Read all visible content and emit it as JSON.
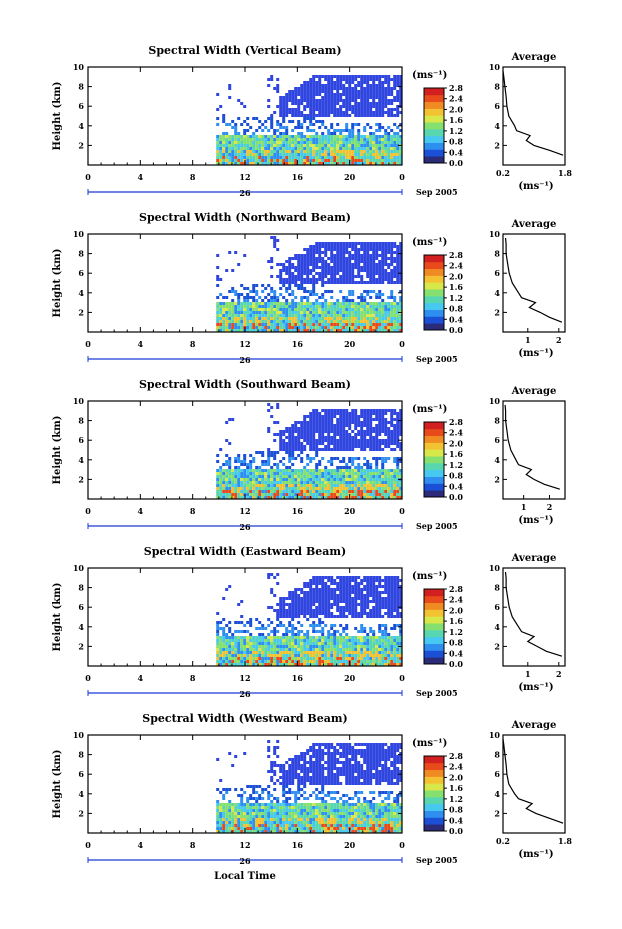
{
  "figure": {
    "x_axis_label": "Local Time",
    "date_label": "Sep 2005",
    "day_label": "26",
    "time_ticks": [
      "0",
      "4",
      "8",
      "12",
      "16",
      "20",
      "0"
    ],
    "height_axis_label": "Height (km)",
    "height_ticks": [
      "2",
      "4",
      "6",
      "8",
      "10"
    ],
    "colorbar_unit": "(ms⁻¹)",
    "colorbar_ticks": [
      "0.0",
      "0.4",
      "0.8",
      "1.2",
      "1.6",
      "2.0",
      "2.4",
      "2.8"
    ],
    "average_title": "Average",
    "average_xlabel": "(ms⁻¹)",
    "colors": {
      "scale": [
        "#2b2b7a",
        "#1a4fd6",
        "#2f8ff0",
        "#46c8f0",
        "#58d6b0",
        "#86e070",
        "#d8e84a",
        "#f2c232",
        "#f08a22",
        "#e84a1c",
        "#d22020"
      ],
      "blue_cloud": "#2f45e0"
    }
  },
  "chart_data": [
    {
      "type": "heatmap",
      "title": "Spectral Width (Vertical Beam)",
      "colorbar_range": [
        0.0,
        2.8
      ],
      "xlim_hours": [
        0,
        24
      ],
      "ylim_km": [
        0,
        10
      ],
      "data_start_hour": 9.8,
      "average_profile": {
        "xticks": [
          "0.2",
          "1.8"
        ],
        "xlim": [
          0.2,
          1.8
        ],
        "height_km": [
          1,
          1.5,
          2,
          2.5,
          3,
          3.5,
          4,
          5,
          6,
          7,
          8,
          9,
          9.6
        ],
        "value": [
          1.75,
          1.4,
          1.0,
          0.8,
          0.9,
          0.55,
          0.5,
          0.35,
          0.3,
          0.28,
          0.25,
          0.22,
          0.2
        ]
      }
    },
    {
      "type": "heatmap",
      "title": "Spectral Width (Northward Beam)",
      "colorbar_range": [
        0.0,
        2.8
      ],
      "xlim_hours": [
        0,
        24
      ],
      "ylim_km": [
        0,
        10
      ],
      "data_start_hour": 9.8,
      "average_profile": {
        "xticks": [
          "1",
          "2"
        ],
        "xlim": [
          0.2,
          2.2
        ],
        "height_km": [
          1,
          1.5,
          2,
          2.5,
          3,
          3.5,
          4,
          5,
          6,
          7,
          8,
          9,
          9.6
        ],
        "value": [
          2.1,
          1.7,
          1.4,
          1.05,
          1.25,
          0.8,
          0.7,
          0.5,
          0.4,
          0.35,
          0.3,
          0.3,
          0.28
        ]
      }
    },
    {
      "type": "heatmap",
      "title": "Spectral Width (Southward Beam)",
      "colorbar_range": [
        0.0,
        2.8
      ],
      "xlim_hours": [
        0,
        24
      ],
      "ylim_km": [
        0,
        10
      ],
      "data_start_hour": 9.8,
      "average_profile": {
        "xticks": [
          "1",
          "2"
        ],
        "xlim": [
          0.2,
          2.6
        ],
        "height_km": [
          1,
          1.5,
          2,
          2.5,
          3,
          3.5,
          4,
          5,
          6,
          7,
          8,
          9,
          9.6
        ],
        "value": [
          2.4,
          1.8,
          1.4,
          1.1,
          1.3,
          0.8,
          0.7,
          0.5,
          0.4,
          0.35,
          0.3,
          0.3,
          0.28
        ]
      }
    },
    {
      "type": "heatmap",
      "title": "Spectral Width (Eastward Beam)",
      "colorbar_range": [
        0.0,
        2.8
      ],
      "xlim_hours": [
        0,
        24
      ],
      "ylim_km": [
        0,
        10
      ],
      "data_start_hour": 9.8,
      "average_profile": {
        "xticks": [
          "1",
          "2"
        ],
        "xlim": [
          0.2,
          2.2
        ],
        "height_km": [
          1,
          1.5,
          2,
          2.5,
          3,
          3.5,
          4,
          5,
          6,
          7,
          8,
          9,
          9.6
        ],
        "value": [
          2.1,
          1.6,
          1.3,
          1.0,
          1.2,
          0.8,
          0.7,
          0.5,
          0.4,
          0.35,
          0.3,
          0.3,
          0.28
        ]
      }
    },
    {
      "type": "heatmap",
      "title": "Spectral Width (Westward Beam)",
      "colorbar_range": [
        0.0,
        2.8
      ],
      "xlim_hours": [
        0,
        24
      ],
      "ylim_km": [
        0,
        10
      ],
      "data_start_hour": 9.8,
      "average_profile": {
        "xticks": [
          "0.2",
          "1.8"
        ],
        "xlim": [
          0.2,
          1.8
        ],
        "height_km": [
          1,
          1.5,
          2,
          2.5,
          3,
          3.5,
          4,
          5,
          6,
          7,
          8,
          9,
          9.6
        ],
        "value": [
          1.75,
          1.4,
          1.05,
          0.8,
          0.95,
          0.6,
          0.5,
          0.35,
          0.3,
          0.28,
          0.25,
          0.22,
          0.2
        ]
      }
    }
  ]
}
